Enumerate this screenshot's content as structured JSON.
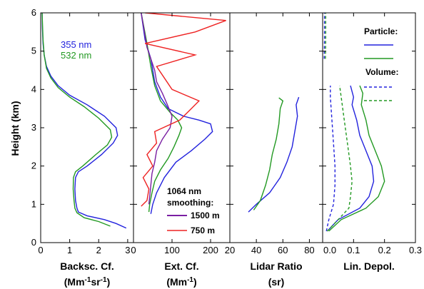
{
  "chart_data": [
    {
      "type": "line",
      "ylabel": "Height (km)",
      "xlabel": "Backsc. Cf.",
      "xlabel_units": [
        "(Mm",
        "-1",
        "sr",
        "-1",
        ")"
      ],
      "xlim": [
        0,
        3.2
      ],
      "ylim": [
        0,
        6
      ],
      "xticks": [
        0,
        1,
        2,
        3
      ],
      "yticks": [
        0,
        1,
        2,
        3,
        4,
        5,
        6
      ],
      "colors": {
        "blue": "#2222dd",
        "green": "#229922"
      },
      "legend": [
        "355 nm",
        "532 nm"
      ],
      "series": [
        {
          "name": "355 nm",
          "color": "blue",
          "style": "solid",
          "points": [
            [
              2.95,
              0.38
            ],
            [
              2.6,
              0.5
            ],
            [
              2.2,
              0.6
            ],
            [
              1.6,
              0.7
            ],
            [
              1.3,
              0.8
            ],
            [
              1.25,
              0.9
            ],
            [
              1.2,
              1.1
            ],
            [
              1.18,
              1.4
            ],
            [
              1.2,
              1.7
            ],
            [
              1.3,
              1.85
            ],
            [
              1.6,
              2.0
            ],
            [
              2.1,
              2.3
            ],
            [
              2.5,
              2.6
            ],
            [
              2.65,
              2.8
            ],
            [
              2.6,
              3.0
            ],
            [
              2.2,
              3.3
            ],
            [
              1.6,
              3.6
            ],
            [
              1.0,
              3.85
            ],
            [
              0.6,
              4.1
            ],
            [
              0.35,
              4.35
            ],
            [
              0.2,
              4.6
            ],
            [
              0.12,
              4.9
            ],
            [
              0.08,
              5.2
            ],
            [
              0.06,
              5.6
            ],
            [
              0.05,
              6.0
            ]
          ]
        },
        {
          "name": "532 nm",
          "color": "green",
          "style": "solid",
          "points": [
            [
              2.4,
              0.43
            ],
            [
              2.0,
              0.55
            ],
            [
              1.5,
              0.65
            ],
            [
              1.25,
              0.78
            ],
            [
              1.18,
              0.9
            ],
            [
              1.15,
              1.1
            ],
            [
              1.12,
              1.4
            ],
            [
              1.13,
              1.7
            ],
            [
              1.2,
              1.85
            ],
            [
              1.45,
              2.0
            ],
            [
              1.9,
              2.3
            ],
            [
              2.3,
              2.55
            ],
            [
              2.45,
              2.75
            ],
            [
              2.4,
              2.95
            ],
            [
              2.0,
              3.25
            ],
            [
              1.5,
              3.55
            ],
            [
              1.0,
              3.8
            ],
            [
              0.6,
              4.05
            ],
            [
              0.35,
              4.3
            ],
            [
              0.2,
              4.55
            ],
            [
              0.12,
              4.9
            ],
            [
              0.08,
              5.3
            ],
            [
              0.05,
              6.0
            ]
          ]
        }
      ]
    },
    {
      "type": "line",
      "xlabel": "Ext. Cf.",
      "xlabel_units": [
        "(Mm",
        "-1",
        ")"
      ],
      "xlim": [
        0,
        250
      ],
      "ylim": [
        0,
        6
      ],
      "xticks": [
        0,
        100,
        200
      ],
      "colors": {
        "blue": "#2222dd",
        "green": "#229922",
        "purple": "#7a1fa2",
        "red": "#ee2222"
      },
      "legend_title": [
        "1064 nm",
        "smoothing:"
      ],
      "legend": [
        "1500 m",
        "750 m"
      ],
      "series": [
        {
          "name": "",
          "color": "blue",
          "style": "solid",
          "points": [
            [
              45,
              0.75
            ],
            [
              50,
              1.0
            ],
            [
              60,
              1.3
            ],
            [
              80,
              1.7
            ],
            [
              110,
              2.1
            ],
            [
              150,
              2.4
            ],
            [
              185,
              2.7
            ],
            [
              205,
              2.9
            ],
            [
              200,
              3.1
            ],
            [
              170,
              3.2
            ],
            [
              130,
              3.3
            ],
            [
              90,
              3.5
            ],
            [
              70,
              3.8
            ],
            [
              55,
              4.2
            ],
            [
              45,
              4.8
            ],
            [
              30,
              5.3
            ],
            [
              20,
              6.0
            ]
          ]
        },
        {
          "name": "",
          "color": "green",
          "style": "solid",
          "points": [
            [
              40,
              0.8
            ],
            [
              42,
              1.0
            ],
            [
              48,
              1.3
            ],
            [
              55,
              1.6
            ],
            [
              70,
              1.9
            ],
            [
              90,
              2.2
            ],
            [
              105,
              2.5
            ],
            [
              118,
              2.8
            ],
            [
              125,
              3.0
            ],
            [
              115,
              3.2
            ],
            [
              95,
              3.4
            ],
            [
              70,
              3.7
            ],
            [
              55,
              4.1
            ],
            [
              45,
              4.6
            ],
            [
              35,
              5.2
            ],
            [
              20,
              6.0
            ]
          ]
        },
        {
          "name": "1500 m",
          "color": "purple",
          "style": "solid",
          "points": [
            [
              40,
              1.0
            ],
            [
              45,
              1.5
            ],
            [
              48,
              1.8
            ],
            [
              55,
              2.1
            ],
            [
              60,
              2.4
            ],
            [
              75,
              2.7
            ],
            [
              95,
              3.0
            ],
            [
              100,
              3.3
            ],
            [
              88,
              3.6
            ],
            [
              75,
              3.9
            ],
            [
              60,
              4.2
            ],
            [
              55,
              4.5
            ],
            [
              45,
              4.8
            ],
            [
              35,
              5.1
            ],
            [
              30,
              5.4
            ],
            [
              25,
              5.7
            ],
            [
              20,
              6.0
            ]
          ]
        },
        {
          "name": "750 m",
          "color": "red",
          "style": "solid",
          "points": [
            [
              20,
              0.95
            ],
            [
              35,
              1.1
            ],
            [
              40,
              1.4
            ],
            [
              25,
              1.7
            ],
            [
              50,
              2.0
            ],
            [
              35,
              2.3
            ],
            [
              60,
              2.6
            ],
            [
              55,
              2.9
            ],
            [
              120,
              3.2
            ],
            [
              150,
              3.5
            ],
            [
              170,
              3.7
            ],
            [
              100,
              4.0
            ],
            [
              80,
              4.3
            ],
            [
              60,
              4.6
            ],
            [
              160,
              4.9
            ],
            [
              30,
              5.2
            ],
            [
              160,
              5.5
            ],
            [
              240,
              5.8
            ],
            [
              30,
              6.0
            ]
          ]
        }
      ]
    },
    {
      "type": "line",
      "xlabel": "Lidar Ratio",
      "xlabel_units": [
        "(sr)"
      ],
      "xlim": [
        20,
        90
      ],
      "ylim": [
        0,
        6
      ],
      "xticks": [
        20,
        40,
        60,
        80
      ],
      "colors": {
        "blue": "#2222dd",
        "green": "#229922"
      },
      "series": [
        {
          "name": "",
          "color": "blue",
          "style": "solid",
          "points": [
            [
              34,
              0.8
            ],
            [
              40,
              1.0
            ],
            [
              50,
              1.3
            ],
            [
              58,
              1.7
            ],
            [
              63,
              2.1
            ],
            [
              67,
              2.5
            ],
            [
              69,
              2.9
            ],
            [
              71,
              3.3
            ],
            [
              70,
              3.6
            ],
            [
              72,
              3.8
            ]
          ]
        },
        {
          "name": "",
          "color": "green",
          "style": "solid",
          "points": [
            [
              38,
              0.85
            ],
            [
              43,
              1.1
            ],
            [
              47,
              1.5
            ],
            [
              50,
              1.9
            ],
            [
              52,
              2.3
            ],
            [
              55,
              2.7
            ],
            [
              57,
              3.1
            ],
            [
              58,
              3.5
            ],
            [
              60,
              3.7
            ],
            [
              57,
              3.78
            ]
          ]
        }
      ]
    },
    {
      "type": "line",
      "xlabel": "Lin. Depol.",
      "xlim": [
        0,
        0.3
      ],
      "ylim": [
        0,
        6
      ],
      "xticks": [
        0.0,
        0.1,
        0.2,
        0.3
      ],
      "colors": {
        "blue": "#2222dd",
        "green": "#229922"
      },
      "legend_groups": [
        {
          "title": "Particle:",
          "styles": [
            "solid",
            "solid"
          ],
          "colors": [
            "blue",
            "green"
          ]
        },
        {
          "title": "Volume:",
          "styles": [
            "dashed",
            "dashed"
          ],
          "colors": [
            "blue",
            "green"
          ]
        }
      ],
      "series": [
        {
          "name": "",
          "color": "blue",
          "style": "solid",
          "points": [
            [
              0.015,
              0.3
            ],
            [
              0.05,
              0.6
            ],
            [
              0.12,
              0.9
            ],
            [
              0.15,
              1.2
            ],
            [
              0.165,
              1.6
            ],
            [
              0.16,
              2.0
            ],
            [
              0.14,
              2.4
            ],
            [
              0.12,
              2.8
            ],
            [
              0.11,
              3.2
            ],
            [
              0.095,
              3.6
            ],
            [
              0.1,
              3.8
            ],
            [
              0.09,
              4.1
            ]
          ]
        },
        {
          "name": "",
          "color": "green",
          "style": "solid",
          "points": [
            [
              0.02,
              0.3
            ],
            [
              0.06,
              0.6
            ],
            [
              0.14,
              0.9
            ],
            [
              0.18,
              1.2
            ],
            [
              0.2,
              1.6
            ],
            [
              0.19,
              2.0
            ],
            [
              0.17,
              2.4
            ],
            [
              0.15,
              2.8
            ],
            [
              0.14,
              3.2
            ],
            [
              0.125,
              3.6
            ],
            [
              0.13,
              3.9
            ],
            [
              0.12,
              4.1
            ]
          ]
        },
        {
          "name": "",
          "color": "blue",
          "style": "dashed",
          "points": [
            [
              0.012,
              0.3
            ],
            [
              0.02,
              0.6
            ],
            [
              0.035,
              1.0
            ],
            [
              0.04,
              1.5
            ],
            [
              0.04,
              2.0
            ],
            [
              0.035,
              2.6
            ],
            [
              0.03,
              3.2
            ],
            [
              0.025,
              3.8
            ],
            [
              0.025,
              4.1
            ]
          ]
        },
        {
          "name": "",
          "color": "green",
          "style": "dashed",
          "points": [
            [
              0.015,
              0.3
            ],
            [
              0.05,
              0.6
            ],
            [
              0.085,
              0.9
            ],
            [
              0.09,
              1.2
            ],
            [
              0.095,
              1.6
            ],
            [
              0.09,
              2.0
            ],
            [
              0.08,
              2.6
            ],
            [
              0.07,
              3.2
            ],
            [
              0.06,
              3.8
            ],
            [
              0.055,
              4.1
            ]
          ]
        },
        {
          "name": "",
          "color": "blue",
          "style": "dashed",
          "points": [
            [
              0.005,
              4.8
            ],
            [
              0.006,
              5.3
            ],
            [
              0.006,
              6.0
            ]
          ]
        },
        {
          "name": "",
          "color": "green",
          "style": "dashed",
          "points": [
            [
              0.009,
              4.8
            ],
            [
              0.01,
              5.3
            ],
            [
              0.01,
              6.0
            ]
          ]
        }
      ]
    }
  ]
}
